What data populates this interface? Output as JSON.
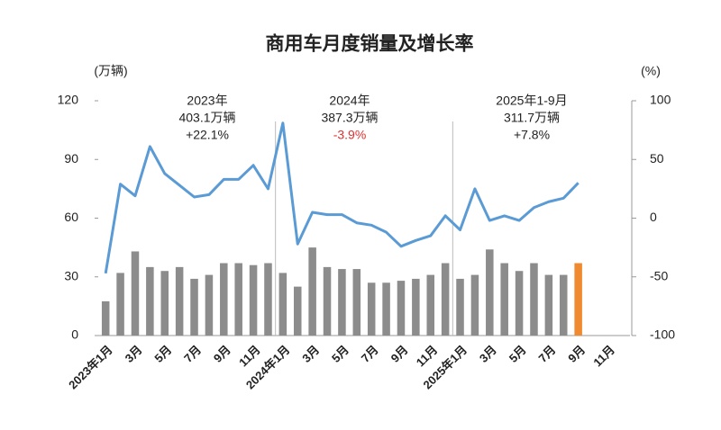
{
  "chart_data": {
    "type": "bar_line",
    "title": "商用车月度销量及增长率",
    "y_unit": "(万辆)",
    "y2_unit": "(%)",
    "categories": [
      "2023年1月",
      null,
      "3月",
      null,
      "5月",
      null,
      "7月",
      null,
      "9月",
      null,
      "11月",
      null,
      "2024年1月",
      null,
      "3月",
      null,
      "5月",
      null,
      "7月",
      null,
      "9月",
      null,
      "11月",
      null,
      "2025年1月",
      null,
      "3月",
      null,
      "5月",
      null,
      "7月",
      null,
      "9月",
      null,
      "11月",
      null
    ],
    "ylim": [
      0,
      120
    ],
    "yticks": [
      0,
      30,
      60,
      90,
      120
    ],
    "y2lim": [
      -100,
      100
    ],
    "y2ticks": [
      -100,
      -50,
      0,
      50,
      100
    ],
    "series": [
      {
        "type": "bar",
        "color": "#8c8c8c",
        "colors": [
          "#8c8c8c",
          "#8c8c8c",
          "#8c8c8c",
          "#8c8c8c",
          "#8c8c8c",
          "#8c8c8c",
          "#8c8c8c",
          "#8c8c8c",
          "#8c8c8c",
          "#8c8c8c",
          "#8c8c8c",
          "#8c8c8c",
          "#8c8c8c",
          "#8c8c8c",
          "#8c8c8c",
          "#8c8c8c",
          "#8c8c8c",
          "#8c8c8c",
          "#8c8c8c",
          "#8c8c8c",
          "#8c8c8c",
          "#8c8c8c",
          "#8c8c8c",
          "#8c8c8c",
          "#8c8c8c",
          "#8c8c8c",
          "#8c8c8c",
          "#8c8c8c",
          "#8c8c8c",
          "#8c8c8c",
          "#8c8c8c",
          "#8c8c8c",
          "#f08a30",
          null,
          null,
          null
        ],
        "values": [
          17.5,
          32,
          43,
          35,
          33,
          35,
          29,
          31,
          37,
          37,
          36,
          37,
          32,
          25,
          45,
          35,
          34,
          34,
          27,
          27,
          28,
          29,
          31,
          37,
          29,
          31,
          44,
          37,
          33,
          37,
          31,
          31,
          37,
          null,
          null,
          null
        ]
      },
      {
        "type": "line",
        "axis": "y2",
        "color": "#5b9bd5",
        "values": [
          -47,
          29,
          19,
          61,
          38,
          28,
          18,
          20,
          33,
          33,
          45,
          25,
          81,
          -22,
          5,
          3,
          3,
          -4,
          -6,
          -12,
          -24,
          -19,
          -15,
          2,
          -10,
          25,
          -2,
          2,
          -2,
          9,
          14,
          17,
          30,
          null,
          null,
          null
        ]
      }
    ],
    "annotations": [
      [
        {
          "text": "2023年",
          "color": "#222"
        },
        {
          "text": "403.1万辆",
          "color": "#222"
        },
        {
          "text": "+22.1%",
          "color": "#222"
        }
      ],
      [
        {
          "text": "2024年",
          "color": "#222"
        },
        {
          "text": "387.3万辆",
          "color": "#222"
        },
        {
          "text": "-3.9%",
          "color": "#e03030"
        }
      ],
      [
        {
          "text": "2025年1-9月",
          "color": "#222"
        },
        {
          "text": "311.7万辆",
          "color": "#222"
        },
        {
          "text": "+7.8%",
          "color": "#222"
        }
      ]
    ]
  }
}
